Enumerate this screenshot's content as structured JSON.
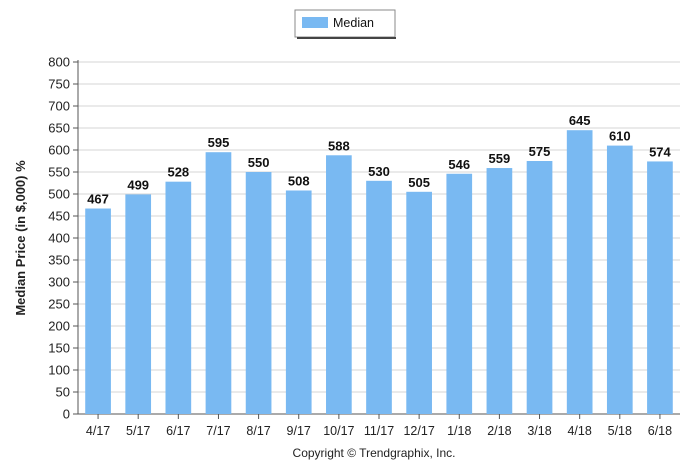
{
  "chart_data": {
    "type": "bar",
    "title": "",
    "xlabel": "",
    "ylabel": "Median Price (in $,000) %",
    "ylim": [
      0,
      800
    ],
    "yticks": [
      0,
      50,
      100,
      150,
      200,
      250,
      300,
      350,
      400,
      450,
      500,
      550,
      600,
      650,
      700,
      750,
      800
    ],
    "grid": true,
    "legend_position": "top-center",
    "categories": [
      "4/17",
      "5/17",
      "6/17",
      "7/17",
      "8/17",
      "9/17",
      "10/17",
      "11/17",
      "12/17",
      "1/18",
      "2/18",
      "3/18",
      "4/18",
      "5/18",
      "6/18"
    ],
    "series": [
      {
        "name": "Median",
        "color": "#79b9f2",
        "values": [
          467,
          499,
          528,
          595,
          550,
          508,
          588,
          530,
          505,
          546,
          559,
          575,
          645,
          610,
          574
        ]
      }
    ]
  },
  "footer": {
    "copyright": "Copyright © Trendgraphix, Inc."
  }
}
